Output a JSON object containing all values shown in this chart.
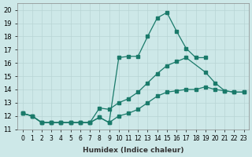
{
  "xlabel": "Humidex (Indice chaleur)",
  "ylabel": "",
  "bg_color": "#cde8e8",
  "grid_color": "#aaaaaa",
  "line_color": "#1a7a6a",
  "xlim": [
    -0.5,
    23.5
  ],
  "ylim": [
    11,
    20.5
  ],
  "yticks": [
    11,
    12,
    13,
    14,
    15,
    16,
    17,
    18,
    19,
    20
  ],
  "xticks": [
    0,
    1,
    2,
    3,
    4,
    5,
    6,
    7,
    8,
    9,
    10,
    11,
    12,
    13,
    14,
    15,
    16,
    17,
    18,
    19,
    20,
    21,
    22,
    23
  ],
  "series1_x": [
    0,
    1,
    2,
    3,
    4,
    5,
    6,
    7,
    8,
    9,
    10,
    11,
    12,
    13,
    14,
    15,
    16,
    17,
    18,
    19,
    20,
    21,
    22,
    23
  ],
  "series1_y": [
    12.2,
    12.0,
    11.5,
    11.5,
    11.5,
    11.5,
    11.5,
    11.5,
    11.9,
    11.5,
    16.4,
    16.5,
    16.5,
    18.0,
    19.4,
    19.8,
    18.4,
    17.1,
    16.4,
    16.4,
    null,
    null,
    null,
    null
  ],
  "series2_x": [
    0,
    1,
    2,
    3,
    4,
    5,
    6,
    7,
    8,
    9,
    10,
    11,
    12,
    13,
    14,
    15,
    16,
    17,
    18,
    19,
    20,
    21,
    22,
    23
  ],
  "series2_y": [
    12.2,
    12.0,
    11.5,
    11.5,
    11.5,
    11.5,
    11.5,
    11.5,
    12.6,
    12.5,
    13.0,
    13.3,
    13.8,
    14.5,
    15.2,
    15.8,
    16.1,
    16.4,
    null,
    15.3,
    14.5,
    13.9,
    13.8,
    13.8
  ],
  "series3_x": [
    0,
    1,
    2,
    3,
    4,
    5,
    6,
    7,
    8,
    9,
    10,
    11,
    12,
    13,
    14,
    15,
    16,
    17,
    18,
    19,
    20,
    21,
    22,
    23
  ],
  "series3_y": [
    12.2,
    12.0,
    11.5,
    11.5,
    11.5,
    11.5,
    11.5,
    11.5,
    11.9,
    11.5,
    12.0,
    12.2,
    12.5,
    13.0,
    13.5,
    13.8,
    13.9,
    14.0,
    14.0,
    14.2,
    14.0,
    13.9,
    13.8,
    13.8
  ]
}
